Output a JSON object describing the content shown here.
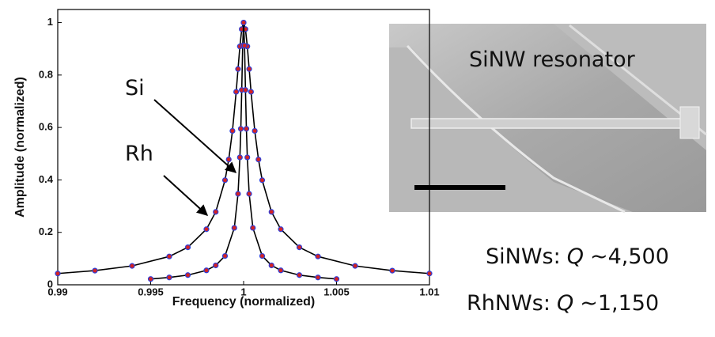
{
  "chart_data": {
    "type": "line",
    "xlabel": "Frequency (normalized)",
    "ylabel": "Amplitude (normalized)",
    "xlim": [
      0.99,
      1.01
    ],
    "xticks": [
      0.99,
      0.995,
      1,
      1.005,
      1.01
    ],
    "ylim": [
      0,
      1.05
    ],
    "yticks": [
      0,
      0.2,
      0.4,
      0.6,
      0.8,
      1
    ],
    "line_color": "#000000",
    "marker_fill": "#d42222",
    "series": [
      {
        "name": "Rh",
        "color": "#2f3fd8",
        "x": [
          0.99,
          0.992,
          0.994,
          0.996,
          0.997,
          0.998,
          0.9985,
          0.999,
          0.9992,
          0.9994,
          0.9996,
          0.9997,
          0.9998,
          0.9999,
          1,
          1.0001,
          1.0002,
          1.0003,
          1.0004,
          1.0006,
          1.0008,
          1.001,
          1.0015,
          1.002,
          1.003,
          1.004,
          1.006,
          1.008,
          1.01
        ],
        "values": [
          0.043,
          0.054,
          0.072,
          0.108,
          0.143,
          0.212,
          0.278,
          0.399,
          0.478,
          0.587,
          0.736,
          0.823,
          0.909,
          0.975,
          1,
          0.975,
          0.909,
          0.823,
          0.736,
          0.587,
          0.478,
          0.399,
          0.278,
          0.212,
          0.143,
          0.108,
          0.072,
          0.054,
          0.043
        ]
      },
      {
        "name": "Si",
        "color": "#2f3fd8",
        "x": [
          0.995,
          0.996,
          0.997,
          0.998,
          0.9985,
          0.999,
          0.9995,
          0.9997,
          0.9998,
          0.99985,
          0.9999,
          0.99995,
          1,
          1.00005,
          1.0001,
          1.00015,
          1.0002,
          1.0003,
          1.0005,
          1.001,
          1.0015,
          1.002,
          1.003,
          1.004,
          1.005
        ],
        "values": [
          0.022,
          0.028,
          0.037,
          0.055,
          0.074,
          0.11,
          0.217,
          0.347,
          0.486,
          0.595,
          0.743,
          0.912,
          1,
          0.912,
          0.743,
          0.595,
          0.486,
          0.347,
          0.217,
          0.11,
          0.074,
          0.055,
          0.037,
          0.028,
          0.022
        ]
      }
    ]
  },
  "image": {
    "label": "SiNW resonator"
  },
  "results": [
    {
      "name": "SiNWs:",
      "symbol": "Q",
      "value": "~4,500"
    },
    {
      "name": "RhNWs:",
      "symbol": "Q",
      "value": "~1,150"
    }
  ]
}
